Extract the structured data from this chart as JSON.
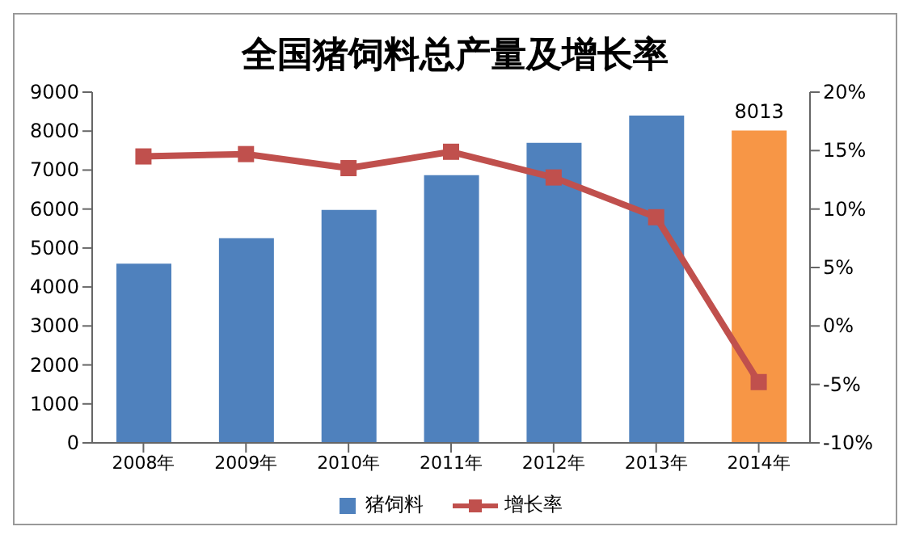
{
  "chart_data": {
    "type": "bar",
    "title": "全国猪饲料总产量及增长率",
    "categories": [
      "2008年",
      "2009年",
      "2010年",
      "2011年",
      "2012年",
      "2013年",
      "2014年"
    ],
    "series": [
      {
        "name": "猪饲料",
        "color": "#4f81bd",
        "colors": [
          "#4f81bd",
          "#4f81bd",
          "#4f81bd",
          "#4f81bd",
          "#4f81bd",
          "#4f81bd",
          "#f79646"
        ],
        "values": [
          4600,
          5250,
          5980,
          6870,
          7700,
          8400,
          8013
        ],
        "value_labels": [
          null,
          null,
          null,
          null,
          null,
          null,
          "8013"
        ]
      },
      {
        "name": "增长率",
        "type": "line",
        "axis": "y2",
        "color": "#c0504d",
        "marker": "square",
        "values": [
          14.5,
          14.7,
          13.5,
          14.9,
          12.7,
          9.3,
          -4.8
        ]
      }
    ],
    "ylim": [
      0,
      9000
    ],
    "yticks": [
      0,
      1000,
      2000,
      3000,
      4000,
      5000,
      6000,
      7000,
      8000,
      9000
    ],
    "y2lim": [
      -10,
      20
    ],
    "y2ticks": [
      {
        "value": -10,
        "label": "-10%"
      },
      {
        "value": -5,
        "label": "-5%"
      },
      {
        "value": 0,
        "label": "0%"
      },
      {
        "value": 5,
        "label": "5%"
      },
      {
        "value": 10,
        "label": "10%"
      },
      {
        "value": 15,
        "label": "15%"
      },
      {
        "value": 20,
        "label": "20%"
      }
    ],
    "legend": "bottom",
    "grid": false
  }
}
